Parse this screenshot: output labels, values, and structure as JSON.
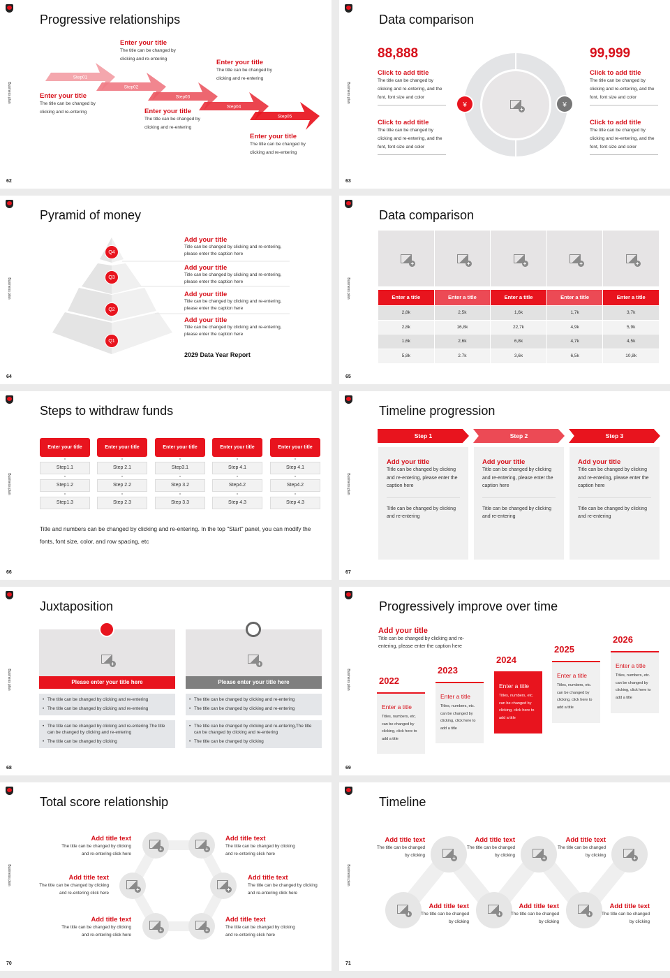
{
  "common": {
    "side_label": "Business plan"
  },
  "colors": {
    "accent": "#e8141e",
    "gray_panel": "#e6e6e6",
    "dark_gray": "#7f7f7f"
  },
  "s62": {
    "title": "Progressive relationships",
    "page": "62",
    "steps": [
      "Step01",
      "Step02",
      "Step03",
      "Step04",
      "Step05"
    ],
    "items": [
      {
        "title": "Enter your title",
        "desc": "The title can be changed by clicking and re-entering"
      },
      {
        "title": "Enter your title",
        "desc": "The title can be changed by clicking and re-entering"
      },
      {
        "title": "Enter your title",
        "desc": "The title can be changed by clicking and re-entering"
      },
      {
        "title": "Enter your title",
        "desc": "The title can be changed by clicking and re-entering"
      },
      {
        "title": "Enter your title",
        "desc": "The title can be changed by clicking and re-entering"
      }
    ]
  },
  "s63": {
    "title": "Data comparison",
    "page": "63",
    "left_value": "88,888",
    "right_value": "99,999",
    "items": [
      {
        "title": "Click to add title",
        "desc": "The title can be changed by clicking and re-entering, and the font, font size and color"
      },
      {
        "title": "Click to add title",
        "desc": "The title can be changed by clicking and re-entering, and the font, font size and color"
      },
      {
        "title": "Click to add title",
        "desc": "The title can be changed by clicking and re-entering, and the font, font size and color"
      },
      {
        "title": "Click to add title",
        "desc": "The title can be changed by clicking and re-entering, and the font, font size and color"
      }
    ],
    "icons": [
      "yuan-hand-icon",
      "money-bag-icon"
    ]
  },
  "s64": {
    "title": "Pyramid of money",
    "page": "64",
    "levels": [
      "Q4",
      "Q3",
      "Q2",
      "Q1"
    ],
    "items": [
      {
        "title": "Add your title",
        "desc": "Title can be changed by clicking and re-entering, please enter the caption here"
      },
      {
        "title": "Add your title",
        "desc": "Title can be changed by clicking and re-entering, please enter the caption here"
      },
      {
        "title": "Add your title",
        "desc": "Title can be changed by clicking and re-entering, please enter the caption here"
      },
      {
        "title": "Add your title",
        "desc": "Title can be changed by clicking and re-entering, please enter the caption here"
      }
    ],
    "report": "2029 Data Year Report"
  },
  "s65": {
    "title": "Data comparison",
    "page": "65",
    "headers": [
      "Enter a title",
      "Enter a title",
      "Enter a title",
      "Enter a title",
      "Enter a title"
    ],
    "rows": [
      [
        "2,8k",
        "2,5k",
        "1,6k",
        "1,7k",
        "3,7k"
      ],
      [
        "2,8k",
        "16,8k",
        "22,7k",
        "4,9k",
        "5,9k"
      ],
      [
        "1,6k",
        "2,6k",
        "6,8k",
        "4,7k",
        "4,5k"
      ],
      [
        "5,8k",
        "2.7k",
        "3,6k",
        "6,5k",
        "10,8k"
      ]
    ]
  },
  "s66": {
    "title": "Steps to withdraw funds",
    "page": "66",
    "headers": [
      "Enter your title",
      "Enter your title",
      "Enter your title",
      "Enter your title",
      "Enter your title"
    ],
    "steps": [
      [
        "Step1.1",
        "Step1.2",
        "Step1.3"
      ],
      [
        "Step 2.1",
        "Step 2.2",
        "Step 2.3"
      ],
      [
        "Step3.1",
        "Step 3.2",
        "Step 3.3"
      ],
      [
        "Step 4.1",
        "Step4.2",
        "Step 4.3"
      ],
      [
        "Step 4.1",
        "Step4.2",
        "Step 4.3"
      ]
    ],
    "note": "Title and numbers can be changed by clicking and re-entering. In the top \"Start\" panel, you can modify the fonts, font size, color, and row spacing, etc"
  },
  "s67": {
    "title": "Timeline progression",
    "page": "67",
    "steps": [
      "Step 1",
      "Step 2",
      "Step 3"
    ],
    "cards": [
      {
        "title": "Add your title",
        "desc": "Title can be changed by clicking and re-entering, please enter the caption here",
        "desc2": "Title can be changed by clicking and re-entering"
      },
      {
        "title": "Add your title",
        "desc": "Title can be changed by clicking and re-entering, please enter the caption here",
        "desc2": "Title can be changed by clicking and re-entering"
      },
      {
        "title": "Add your title",
        "desc": "Title can be changed by clicking and re-entering, please enter the caption here",
        "desc2": "Title can be changed by clicking and re-entering"
      }
    ]
  },
  "s68": {
    "title": "Juxtaposition",
    "page": "68",
    "panels": [
      {
        "icon": "bar-chart-icon",
        "band": "Please enter your title here",
        "b1": "The title can be changed by clicking and re-entering",
        "b2": "The title can be changed by clicking and re-entering",
        "b3": "The title can be changed by clicking and re-entering.The title can be changed by clicking and re-entering",
        "b4": "The title can be changed by clicking"
      },
      {
        "icon": "clock-icon",
        "band": "Please enter your title here",
        "b1": "The title can be changed by clicking and re-entering",
        "b2": "The title can be changed by clicking and re-entering",
        "b3": "The title can be changed by clicking and re-entering,The title can be changed by clicking and re-entering",
        "b4": "The title can be changed by clicking"
      }
    ]
  },
  "s69": {
    "title": "Progressively improve over time",
    "page": "69",
    "intro_title": "Add your title",
    "intro_desc": "Title can be changed by clicking and re-entering, please enter the caption here",
    "years": [
      {
        "year": "2022",
        "title": "Enter a title",
        "desc": "Titles, numbers, etc. can be changed by clicking, click here to add a title"
      },
      {
        "year": "2023",
        "title": "Enter a title",
        "desc": "Titles, numbers, etc. can be changed by clicking, click here to add a title"
      },
      {
        "year": "2024",
        "title": "Enter a title",
        "desc": "Titles, numbers, etc. can be changed by clicking, click here to add a title"
      },
      {
        "year": "2025",
        "title": "Enter a title",
        "desc": "Titles, numbers, etc. can be changed by clicking, click here to add a title"
      },
      {
        "year": "2026",
        "title": "Enter a title",
        "desc": "Titles, numbers, etc. can be changed by clicking, click here to add a title"
      }
    ]
  },
  "s70": {
    "title": "Total score relationship",
    "page": "70",
    "items": [
      {
        "title": "Add title text",
        "desc": "The title can be changed by clicking and re-entering click here"
      },
      {
        "title": "Add title text",
        "desc": "The title can be changed by clicking and re-entering click here"
      },
      {
        "title": "Add title text",
        "desc": "The title can be changed by clicking and re-entering click here"
      },
      {
        "title": "Add title text",
        "desc": "The title can be changed by clicking and re-entering click here"
      },
      {
        "title": "Add title text",
        "desc": "The title can be changed by clicking and re-entering click here"
      },
      {
        "title": "Add title text",
        "desc": "The title can be changed by clicking and re-entering click here"
      }
    ]
  },
  "s71": {
    "title": "Timeline",
    "page": "71",
    "items": [
      {
        "title": "Add title text",
        "desc": "The title can be changed by clicking"
      },
      {
        "title": "Add title text",
        "desc": "The title can be changed by clicking"
      },
      {
        "title": "Add title text",
        "desc": "The title can be changed by clicking"
      },
      {
        "title": "Add title text",
        "desc": "The title can be changed by clicking"
      },
      {
        "title": "Add title text",
        "desc": "The title can be changed by clicking"
      },
      {
        "title": "Add title text",
        "desc": "The title can be changed by clicking"
      }
    ]
  }
}
